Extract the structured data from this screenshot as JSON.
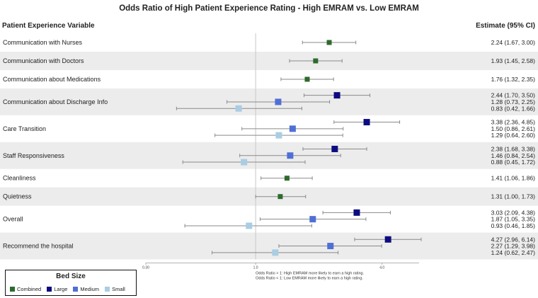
{
  "chart_data": {
    "type": "forest",
    "title": "Odds Ratio of High Patient Experience Rating - High EMRAM vs. Low EMRAM",
    "column_headers": {
      "variable": "Patient Experience Variable",
      "estimate": "Estimate (95% CI)"
    },
    "x_axis": {
      "scale": "log",
      "min": 0.3,
      "max": 6.0,
      "reference_line": 1.0,
      "ticks": [
        0.3,
        1.0,
        4.0
      ],
      "tick_labels": [
        "0.30",
        "1.0",
        "4.0"
      ]
    },
    "notes": [
      "Odds Ratio > 1: High EMRAM more likely to earn a high rating.",
      "Odds Ratio < 1: Low EMRAM more likely to earn a high rating."
    ],
    "legend": {
      "title": "Bed Size",
      "items": [
        {
          "label": "Combined",
          "color": "#2d6a2d"
        },
        {
          "label": "Large",
          "color": "#0c0c80"
        },
        {
          "label": "Medium",
          "color": "#4f6fd6"
        },
        {
          "label": "Small",
          "color": "#a9cde3"
        }
      ]
    },
    "variables": [
      {
        "label": "Communication with Nurses",
        "shaded": false,
        "estimates": [
          {
            "group": "Combined",
            "or": 2.24,
            "lo": 1.67,
            "hi": 3.0,
            "text": "2.24 (1.67, 3.00)"
          }
        ]
      },
      {
        "label": "Communication with Doctors",
        "shaded": true,
        "estimates": [
          {
            "group": "Combined",
            "or": 1.93,
            "lo": 1.45,
            "hi": 2.58,
            "text": "1.93 (1.45, 2.58)"
          }
        ]
      },
      {
        "label": "Communication about Medications",
        "shaded": false,
        "estimates": [
          {
            "group": "Combined",
            "or": 1.76,
            "lo": 1.32,
            "hi": 2.35,
            "text": "1.76 (1.32, 2.35)"
          }
        ]
      },
      {
        "label": "Communication about Discharge Info",
        "shaded": true,
        "estimates": [
          {
            "group": "Large",
            "or": 2.44,
            "lo": 1.7,
            "hi": 3.5,
            "text": "2.44 (1.70, 3.50)"
          },
          {
            "group": "Medium",
            "or": 1.28,
            "lo": 0.73,
            "hi": 2.25,
            "text": "1.28 (0.73, 2.25)"
          },
          {
            "group": "Small",
            "or": 0.83,
            "lo": 0.42,
            "hi": 1.66,
            "text": "0.83 (0.42, 1.66)"
          }
        ]
      },
      {
        "label": "Care Transition",
        "shaded": false,
        "estimates": [
          {
            "group": "Large",
            "or": 3.38,
            "lo": 2.36,
            "hi": 4.85,
            "text": "3.38 (2.36, 4.85)"
          },
          {
            "group": "Medium",
            "or": 1.5,
            "lo": 0.86,
            "hi": 2.61,
            "text": "1.50 (0.86, 2.61)"
          },
          {
            "group": "Small",
            "or": 1.29,
            "lo": 0.64,
            "hi": 2.6,
            "text": "1.29 (0.64, 2.60)"
          }
        ]
      },
      {
        "label": "Staff Responsiveness",
        "shaded": true,
        "estimates": [
          {
            "group": "Large",
            "or": 2.38,
            "lo": 1.68,
            "hi": 3.38,
            "text": "2.38 (1.68, 3.38)"
          },
          {
            "group": "Medium",
            "or": 1.46,
            "lo": 0.84,
            "hi": 2.54,
            "text": "1.46 (0.84, 2.54)"
          },
          {
            "group": "Small",
            "or": 0.88,
            "lo": 0.45,
            "hi": 1.72,
            "text": "0.88 (0.45, 1.72)"
          }
        ]
      },
      {
        "label": "Cleanliness",
        "shaded": false,
        "estimates": [
          {
            "group": "Combined",
            "or": 1.41,
            "lo": 1.06,
            "hi": 1.86,
            "text": "1.41 (1.06, 1.86)"
          }
        ]
      },
      {
        "label": "Quietness",
        "shaded": true,
        "estimates": [
          {
            "group": "Combined",
            "or": 1.31,
            "lo": 1.0,
            "hi": 1.73,
            "text": "1.31 (1.00, 1.73)"
          }
        ]
      },
      {
        "label": "Overall",
        "shaded": false,
        "estimates": [
          {
            "group": "Large",
            "or": 3.03,
            "lo": 2.09,
            "hi": 4.38,
            "text": "3.03 (2.09, 4.38)"
          },
          {
            "group": "Medium",
            "or": 1.87,
            "lo": 1.05,
            "hi": 3.35,
            "text": "1.87 (1.05, 3.35)"
          },
          {
            "group": "Small",
            "or": 0.93,
            "lo": 0.46,
            "hi": 1.85,
            "text": "0.93 (0.46, 1.85)"
          }
        ]
      },
      {
        "label": "Recommend the hospital",
        "shaded": true,
        "estimates": [
          {
            "group": "Large",
            "or": 4.27,
            "lo": 2.96,
            "hi": 6.14,
            "text": "4.27 (2.96, 6.14)"
          },
          {
            "group": "Medium",
            "or": 2.27,
            "lo": 1.29,
            "hi": 3.98,
            "text": "2.27 (1.29, 3.98)"
          },
          {
            "group": "Small",
            "or": 1.24,
            "lo": 0.62,
            "hi": 2.47,
            "text": "1.24 (0.62, 2.47)"
          }
        ]
      }
    ]
  }
}
